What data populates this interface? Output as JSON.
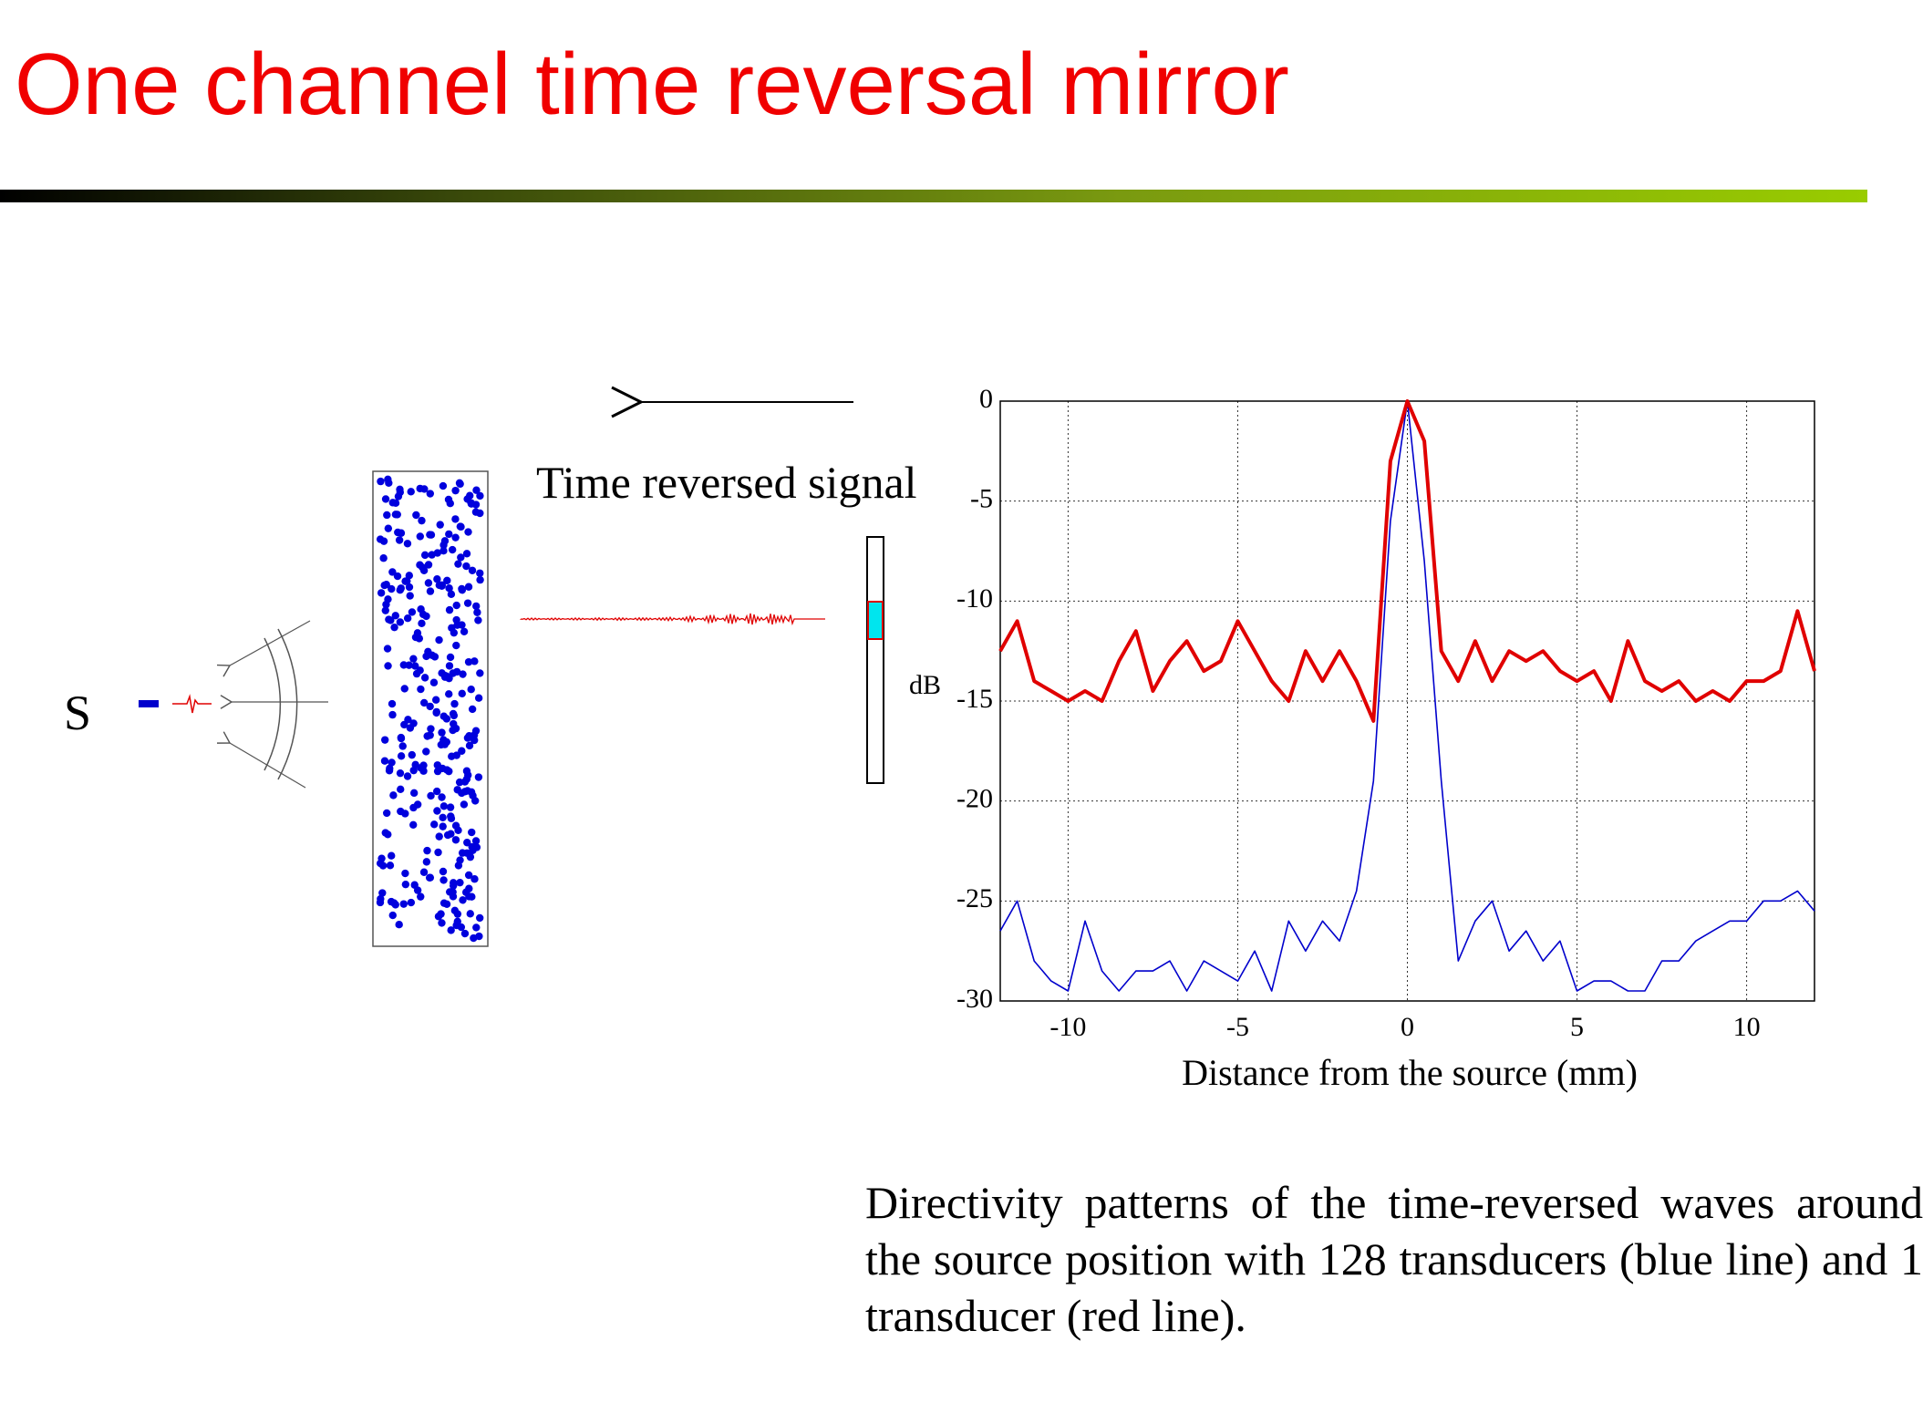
{
  "title": "One channel time reversal mirror",
  "diagram": {
    "source_label": "S",
    "signal_label": "Time reversed signal"
  },
  "caption": "Directivity patterns of the time-reversed waves around the source position with 128 transducers (blue line) and 1 transducer (red line).",
  "chart_data": {
    "type": "line",
    "xlabel": "Distance from the source (mm)",
    "ylabel": "dB",
    "x": [
      -12,
      -11.5,
      -11,
      -10.5,
      -10,
      -9.5,
      -9,
      -8.5,
      -8,
      -7.5,
      -7,
      -6.5,
      -6,
      -5.5,
      -5,
      -4.5,
      -4,
      -3.5,
      -3,
      -2.5,
      -2,
      -1.5,
      -1,
      -0.5,
      0,
      0.5,
      1,
      1.5,
      2,
      2.5,
      3,
      3.5,
      4,
      4.5,
      5,
      5.5,
      6,
      6.5,
      7,
      7.5,
      8,
      8.5,
      9,
      9.5,
      10,
      10.5,
      11,
      11.5,
      12
    ],
    "series": [
      {
        "color": "#0000cc",
        "values": [
          -26.5,
          -25,
          -28,
          -29,
          -29.5,
          -26,
          -28.5,
          -29.5,
          -28.5,
          -28.5,
          -28,
          -29.5,
          -28,
          -28.5,
          -29,
          -27.5,
          -29.5,
          -26,
          -27.5,
          -26,
          -27,
          -24.5,
          -19,
          -6,
          0,
          -8,
          -19,
          -28,
          -26,
          -25,
          -27.5,
          -26.5,
          -28,
          -27,
          -29.5,
          -29,
          -29,
          -29.5,
          -29.5,
          -28,
          -28,
          -27,
          -26.5,
          -26,
          -26,
          -25,
          -25,
          -24.5,
          -25.5
        ]
      },
      {
        "color": "#e00000",
        "values": [
          -12.5,
          -11,
          -14,
          -14.5,
          -15,
          -14.5,
          -15,
          -13,
          -11.5,
          -14.5,
          -13,
          -12,
          -13.5,
          -13,
          -11,
          -12.5,
          -14,
          -15,
          -12.5,
          -14,
          -12.5,
          -14,
          -16,
          -3,
          0,
          -2,
          -12.5,
          -14,
          -12,
          -14,
          -12.5,
          -13,
          -12.5,
          -13.5,
          -14,
          -13.5,
          -15,
          -12,
          -14,
          -14.5,
          -14,
          -15,
          -14.5,
          -15,
          -14,
          -14,
          -13.5,
          -10.5,
          -13.5
        ]
      }
    ],
    "xlim": [
      -12,
      12
    ],
    "ylim": [
      -30,
      0
    ],
    "xticks": [
      -10,
      -5,
      0,
      5,
      10
    ],
    "yticks": [
      0,
      -5,
      -10,
      -15,
      -20,
      -25,
      -30
    ],
    "grid": true
  }
}
